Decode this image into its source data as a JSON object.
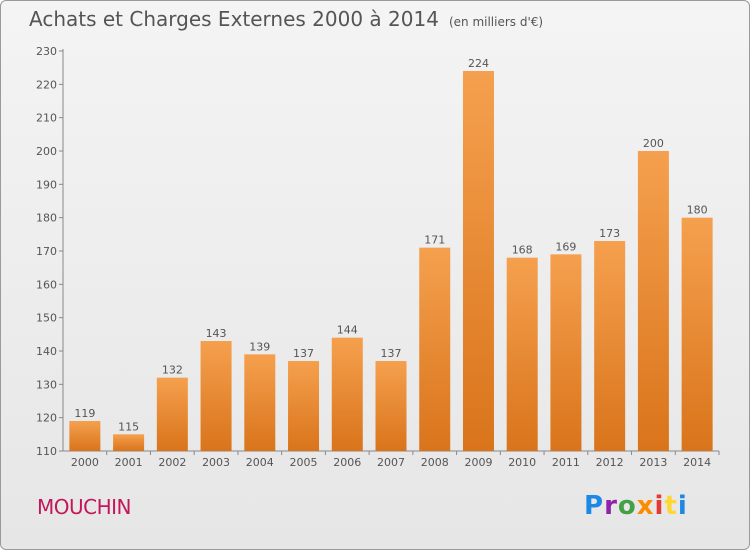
{
  "header": {
    "title": "Achats et Charges Externes 2000 à 2014",
    "subtitle": "(en milliers d'€)"
  },
  "location": "MOUCHIN",
  "brand": {
    "text": "Proxiti",
    "colors": [
      "#1e88e5",
      "#8e24aa",
      "#43a047",
      "#fb8c00",
      "#e53935",
      "#fdd835",
      "#1e88e5"
    ]
  },
  "colors": {
    "bar_top": "#f5a04e",
    "bar_bottom": "#d9741b",
    "axis": "#888888",
    "grid": "#bbbbbb",
    "text": "#555555"
  },
  "chart_data": {
    "type": "bar",
    "categories": [
      "2000",
      "2001",
      "2002",
      "2003",
      "2004",
      "2005",
      "2006",
      "2007",
      "2008",
      "2009",
      "2010",
      "2011",
      "2012",
      "2013",
      "2014"
    ],
    "values": [
      119,
      115,
      132,
      143,
      139,
      137,
      144,
      137,
      171,
      224,
      168,
      169,
      173,
      200,
      180
    ],
    "ylim": [
      110,
      230
    ],
    "yticks": [
      110,
      120,
      130,
      140,
      150,
      160,
      170,
      180,
      190,
      200,
      210,
      220,
      230
    ],
    "title": "Achats et Charges Externes 2000 à 2014",
    "xlabel": "",
    "ylabel": "",
    "grid": false,
    "data_labels": true
  }
}
